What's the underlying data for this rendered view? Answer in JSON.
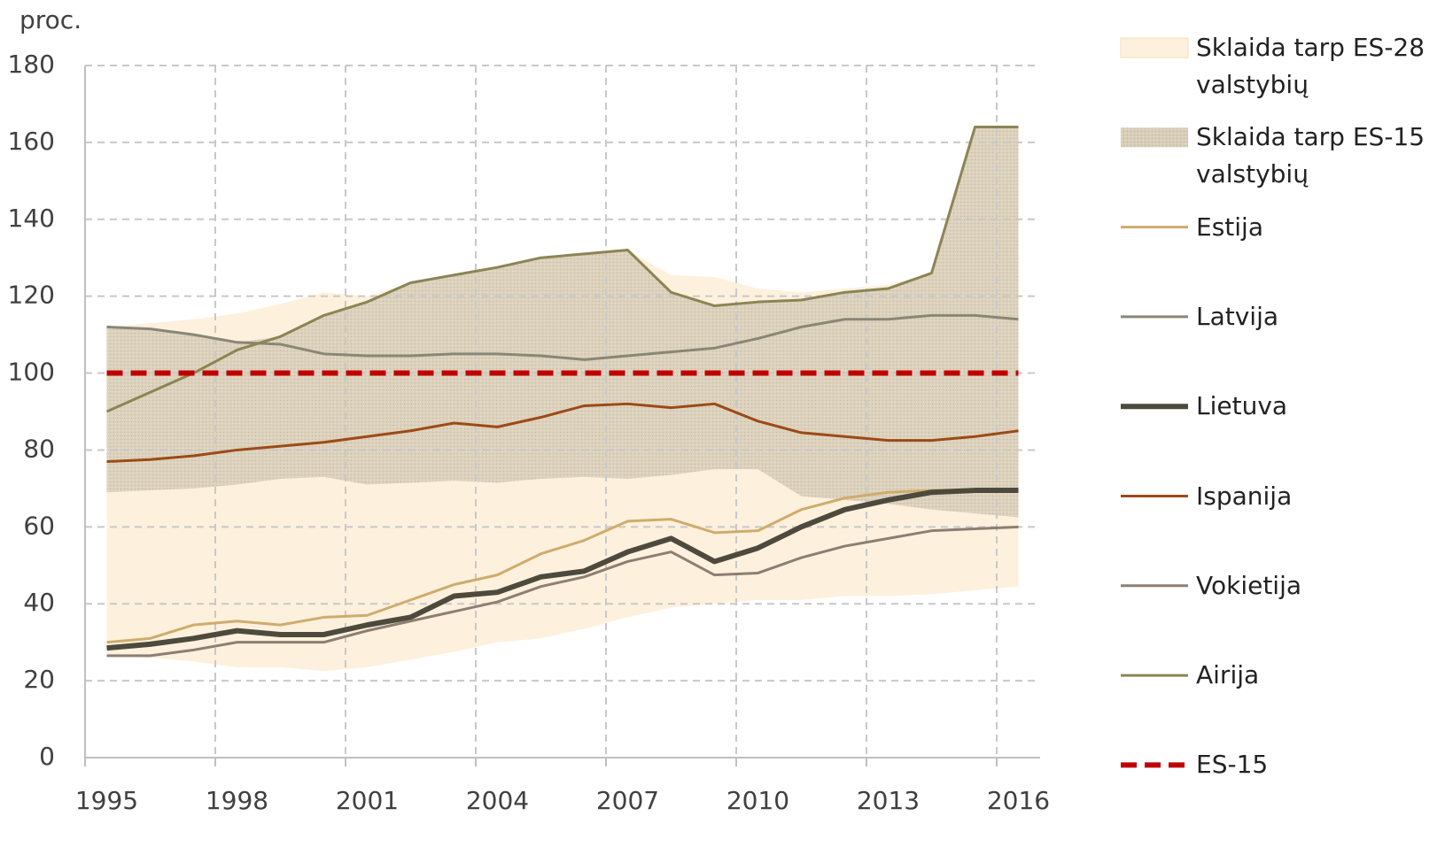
{
  "chart_data": {
    "type": "line",
    "y_label": "proc.",
    "categories": [
      "1995",
      null,
      null,
      "1998",
      null,
      null,
      "2001",
      null,
      null,
      "2004",
      null,
      null,
      "2007",
      null,
      null,
      "2010",
      null,
      null,
      "2013",
      null,
      null,
      "2016"
    ],
    "ylim": [
      0,
      180
    ],
    "yticks": [
      0,
      20,
      40,
      60,
      80,
      100,
      120,
      140,
      160,
      180
    ],
    "grid": true,
    "legend": "right",
    "series": [
      {
        "name": "Sklaida tarp ES-28 valstybių",
        "type": "band",
        "color": "#fdf1dd",
        "lower": [
          26.5,
          26,
          25,
          23.5,
          23.5,
          22.5,
          23.5,
          25.5,
          27.5,
          30,
          31,
          33.5,
          36.5,
          39,
          40,
          41,
          41,
          42,
          42,
          42.5,
          43.5,
          44.5
        ],
        "upper": [
          112,
          113,
          114,
          115.5,
          118,
          121,
          120,
          123.5,
          125.5,
          127.5,
          130,
          131,
          132,
          125.5,
          125,
          122,
          121,
          122,
          123,
          126,
          164,
          164
        ]
      },
      {
        "name": "Sklaida tarp ES-15 valstybių",
        "type": "band",
        "color": "#d5c9b3",
        "texture": true,
        "lower": [
          69,
          69.5,
          70,
          71,
          72.5,
          73,
          71,
          71.5,
          72,
          71.5,
          72.5,
          73,
          72.5,
          73.5,
          75,
          75,
          68,
          67,
          66,
          64.5,
          63.5,
          62.5
        ],
        "upper": [
          112,
          111.5,
          110,
          108,
          109.5,
          115,
          118.5,
          123.5,
          125.5,
          127.5,
          130,
          131,
          132,
          121,
          117.5,
          118.5,
          119,
          121,
          122,
          126,
          164,
          164
        ]
      },
      {
        "name": "Estija",
        "color": "#cfac6c",
        "values": [
          30,
          31,
          34.5,
          35.5,
          34.5,
          36.5,
          37,
          41,
          45,
          47.5,
          53,
          56.5,
          61.5,
          62,
          58.5,
          59,
          64.5,
          67.5,
          69,
          69.5,
          69.5,
          69.5
        ]
      },
      {
        "name": "Latvija",
        "color": "#8a8676",
        "values": [
          112,
          111.5,
          110,
          108,
          107.5,
          105,
          104.5,
          104.5,
          105,
          105,
          104.5,
          103.5,
          104.5,
          105.5,
          106.5,
          109,
          112,
          114,
          114,
          115,
          115,
          114
        ]
      },
      {
        "name": "Lietuva",
        "color": "#4d4a3d",
        "emphasis": true,
        "values": [
          28.5,
          29.5,
          31,
          33,
          32,
          32,
          34.5,
          36.5,
          42,
          43,
          47,
          48.5,
          53.5,
          57,
          51,
          54.5,
          60,
          64.5,
          67,
          69,
          69.5,
          69.5
        ]
      },
      {
        "name": "Ispanija",
        "color": "#9c4a17",
        "values": [
          77,
          77.5,
          78.5,
          80,
          81,
          82,
          83.5,
          85,
          87,
          86,
          88.5,
          91.5,
          92,
          91,
          92,
          87.5,
          84.5,
          83.5,
          82.5,
          82.5,
          83.5,
          85
        ]
      },
      {
        "name": "Vokietija",
        "color": "#8d7e72",
        "values": [
          26.5,
          26.5,
          28,
          30,
          30,
          30,
          33,
          35.5,
          38,
          40.5,
          44.5,
          47,
          51,
          53.5,
          47.5,
          48,
          52,
          55,
          57,
          59,
          59.5,
          60
        ]
      },
      {
        "name": "Airija",
        "color": "#8b8455",
        "values": [
          90,
          95,
          100,
          106,
          109.5,
          115,
          118.5,
          123.5,
          125.5,
          127.5,
          130,
          131,
          132,
          121,
          117.5,
          118.5,
          119,
          121,
          122,
          126,
          164,
          164
        ]
      },
      {
        "name": "ES-15",
        "color": "#c00000",
        "dashed": true,
        "values": [
          100,
          100,
          100,
          100,
          100,
          100,
          100,
          100,
          100,
          100,
          100,
          100,
          100,
          100,
          100,
          100,
          100,
          100,
          100,
          100,
          100,
          100
        ]
      }
    ]
  }
}
